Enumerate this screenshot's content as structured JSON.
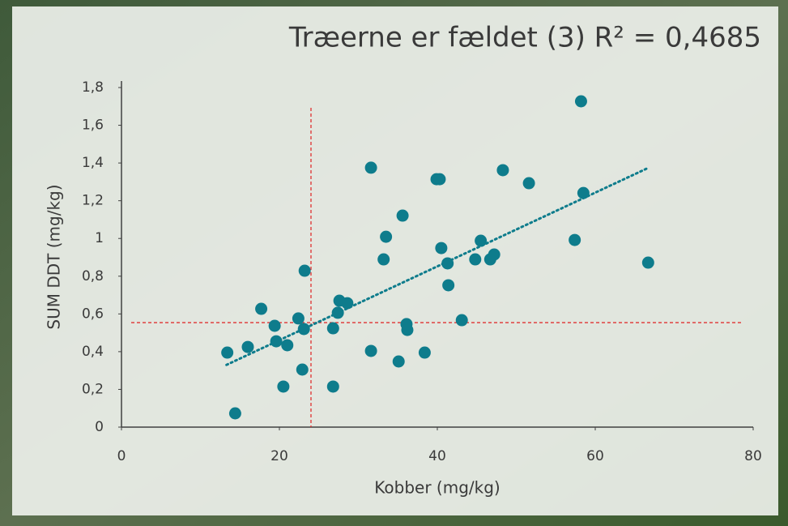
{
  "chart_data": {
    "type": "scatter",
    "title": "Træerne er fældet (3) R² = 0,4685",
    "x_label": "Kobber (mg/kg)",
    "y_label": "SUM DDT (mg/kg)",
    "x": [
      13.4,
      14.4,
      16.0,
      17.7,
      19.4,
      19.6,
      20.5,
      21.0,
      22.4,
      22.9,
      23.1,
      23.2,
      26.8,
      26.8,
      27.4,
      27.6,
      28.6,
      31.6,
      31.6,
      33.2,
      33.5,
      35.1,
      35.6,
      36.1,
      36.2,
      38.4,
      39.9,
      40.3,
      40.5,
      41.3,
      41.4,
      43.1,
      44.8,
      45.5,
      46.7,
      47.2,
      48.3,
      51.6,
      57.4,
      58.2,
      58.5,
      66.7
    ],
    "values": [
      0.395,
      0.073,
      0.425,
      0.627,
      0.537,
      0.455,
      0.215,
      0.434,
      0.576,
      0.305,
      0.52,
      0.829,
      0.524,
      0.215,
      0.606,
      0.67,
      0.657,
      0.404,
      1.375,
      0.889,
      1.009,
      0.348,
      1.121,
      0.546,
      0.515,
      0.395,
      1.314,
      1.314,
      0.949,
      0.868,
      0.752,
      0.567,
      0.889,
      0.988,
      0.889,
      0.915,
      1.362,
      1.293,
      0.992,
      1.727,
      1.241,
      0.872
    ],
    "color": "#0e7c8c",
    "trendline": {
      "x": [
        13.3,
        66.5
      ],
      "y": [
        0.33,
        1.37
      ],
      "color": "#0e7c8c"
    },
    "reference_lines": {
      "x": 24.0,
      "y": 0.554,
      "color": "#e03030"
    },
    "xlim": [
      0,
      80
    ],
    "xticks": [
      0,
      20,
      40,
      60,
      80
    ],
    "ylim": [
      0,
      1.8
    ],
    "yticks": [
      0,
      {
        "value": 0.2,
        "label": "0,2"
      },
      {
        "value": 0.4,
        "label": "0,4"
      },
      {
        "value": 0.6,
        "label": "0,6"
      },
      {
        "value": 0.8,
        "label": "0,8"
      },
      1,
      {
        "value": 1.2,
        "label": "1,2"
      },
      {
        "value": 1.4,
        "label": "1,4"
      },
      {
        "value": 1.6,
        "label": "1,6"
      },
      {
        "value": 1.8,
        "label": "1,8"
      }
    ],
    "grid": false
  }
}
